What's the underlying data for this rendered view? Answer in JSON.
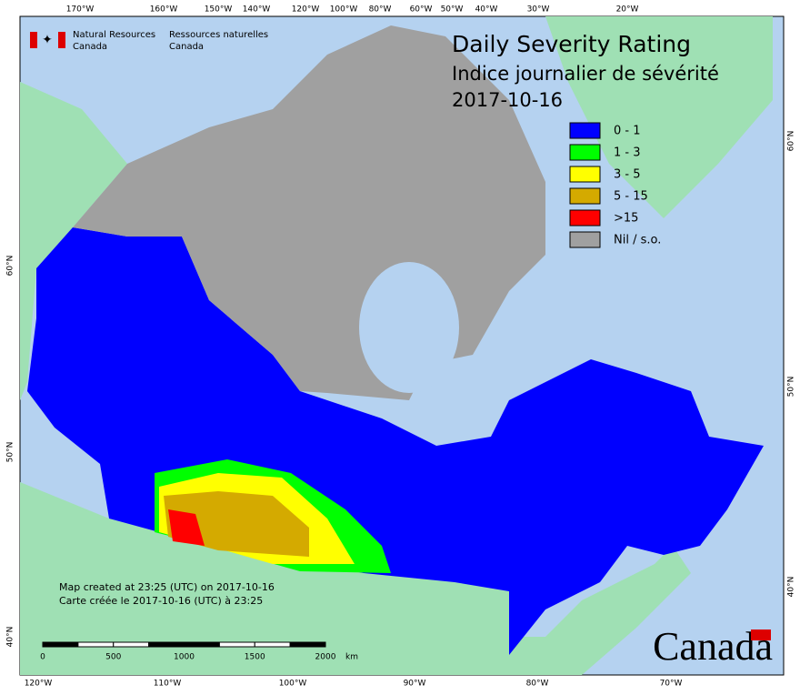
{
  "header": {
    "agency_en": [
      "Natural Resources",
      "Canada"
    ],
    "agency_fr": [
      "Ressources naturelles",
      "Canada"
    ]
  },
  "title": [
    "Daily Severity Rating",
    "Indice journalier de sévérité",
    "2017-10-16"
  ],
  "legend": [
    {
      "label": "0 - 1",
      "color": "#0000ff"
    },
    {
      "label": "1 - 3",
      "color": "#00ff00"
    },
    {
      "label": "3 - 5",
      "color": "#ffff00"
    },
    {
      "label": "5 - 15",
      "color": "#d4aa00"
    },
    {
      "label": ">15",
      "color": "#ff0000"
    },
    {
      "label": "Nil / s.o.",
      "color": "#a0a0a0"
    }
  ],
  "note": [
    "Map created at 23:25 (UTC) on 2017-10-16",
    "Carte créée le 2017-10-16 (UTC) à 23:25"
  ],
  "scale_bar": {
    "ticks": [
      0,
      500,
      1000,
      1500,
      2000
    ],
    "unit": "km"
  },
  "graticule": {
    "top": [
      "170°W",
      "160°W",
      "150°W",
      "140°W",
      "120°W",
      "100°W",
      "80°W",
      "60°W",
      "50°W",
      "40°W",
      "30°W",
      "20°W"
    ],
    "bottom": [
      "120°W",
      "110°W",
      "100°W",
      "90°W",
      "80°W",
      "70°W"
    ],
    "left": [
      "60°N",
      "50°N",
      "40°N"
    ],
    "right": [
      "60°N",
      "50°N",
      "40°N"
    ]
  },
  "wordmark": "Canada"
}
